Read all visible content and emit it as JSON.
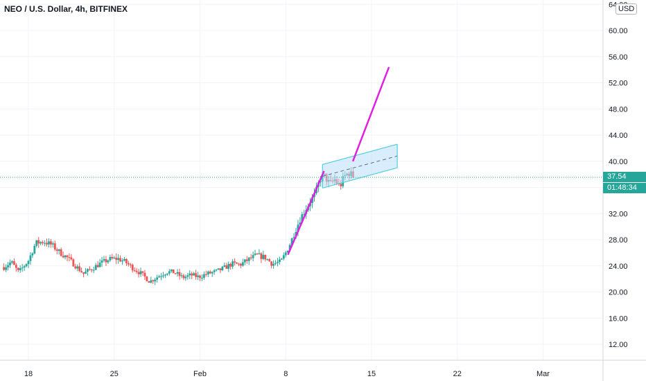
{
  "header": {
    "title": "NEO / U.S. Dollar, 4h, BITFINEX",
    "currency": "USD"
  },
  "last_price_label": "37.54",
  "countdown_label": "01:48:34",
  "colors": {
    "up": "#26a69a",
    "down": "#ef5350",
    "channel_fill": "#bbdefb",
    "channel_line": "#4dd0e1",
    "trend_line": "#e020e0",
    "grid": "#f0f3fa",
    "axis_text": "#131722"
  },
  "chart_data": {
    "type": "candlestick",
    "title": "NEO / U.S. Dollar, 4h, BITFINEX",
    "ylim": [
      8,
      64
    ],
    "y_ticks": [
      12,
      16,
      20,
      24,
      28,
      32,
      36,
      40,
      44,
      48,
      52,
      56,
      60,
      64
    ],
    "y_tick_labels": [
      "12.00",
      "16.00",
      "20.00",
      "24.00",
      "28.00",
      "32.00",
      "",
      "40.00",
      "44.00",
      "48.00",
      "52.00",
      "56.00",
      "60.00",
      "64.00"
    ],
    "x_tick_labels": [
      {
        "day": 18,
        "label": "18"
      },
      {
        "day": 25,
        "label": "25"
      },
      {
        "day": 32,
        "label": "Feb"
      },
      {
        "day": 39,
        "label": "8"
      },
      {
        "day": 46,
        "label": "15"
      },
      {
        "day": 53,
        "label": "22"
      },
      {
        "day": 60,
        "label": "Mar"
      }
    ],
    "grid": true,
    "last_price": 37.54,
    "price_trend": [
      [
        16,
        23.8
      ],
      [
        16.6,
        24.6
      ],
      [
        17.2,
        23.0
      ],
      [
        18.0,
        24.8
      ],
      [
        18.6,
        27.5
      ],
      [
        19.3,
        27.7
      ],
      [
        19.9,
        27.2
      ],
      [
        20.6,
        26.0
      ],
      [
        21.2,
        25.2
      ],
      [
        21.9,
        23.9
      ],
      [
        22.5,
        22.8
      ],
      [
        23.2,
        23.6
      ],
      [
        23.9,
        24.4
      ],
      [
        24.6,
        25.0
      ],
      [
        25.3,
        25.1
      ],
      [
        25.9,
        24.6
      ],
      [
        26.5,
        23.7
      ],
      [
        27.2,
        22.8
      ],
      [
        27.9,
        21.6
      ],
      [
        28.6,
        22.4
      ],
      [
        29.3,
        23.1
      ],
      [
        29.9,
        23.0
      ],
      [
        30.6,
        22.2
      ],
      [
        31.3,
        22.6
      ],
      [
        31.9,
        22.3
      ],
      [
        32.6,
        22.8
      ],
      [
        33.3,
        23.1
      ],
      [
        33.9,
        23.6
      ],
      [
        34.6,
        24.3
      ],
      [
        35.3,
        24.2
      ],
      [
        35.9,
        24.9
      ],
      [
        36.6,
        25.6
      ],
      [
        37.3,
        25.3
      ],
      [
        37.9,
        24.3
      ],
      [
        38.6,
        24.6
      ],
      [
        39.0,
        26.0
      ],
      [
        39.4,
        27.6
      ],
      [
        39.8,
        29.5
      ],
      [
        40.2,
        31.3
      ],
      [
        40.6,
        32.6
      ],
      [
        41.0,
        33.9
      ],
      [
        41.4,
        34.9
      ],
      [
        41.8,
        37.3
      ],
      [
        42.2,
        37.7
      ],
      [
        42.6,
        36.4
      ],
      [
        43.0,
        37.2
      ],
      [
        43.4,
        36.1
      ],
      [
        43.8,
        37.7
      ],
      [
        44.2,
        38.3
      ],
      [
        44.5,
        37.5
      ]
    ],
    "annotations": {
      "channel": {
        "start": [
          42.0,
          39.5
        ],
        "end": [
          48.1,
          42.6
        ],
        "width": 3.6,
        "mid_line": "dashed"
      },
      "trend_line_1": {
        "start": [
          39.2,
          25.8
        ],
        "end": [
          42.1,
          38.4
        ]
      },
      "trend_line_2": {
        "start": [
          44.5,
          40.1
        ],
        "end": [
          47.4,
          54.3
        ]
      }
    }
  }
}
